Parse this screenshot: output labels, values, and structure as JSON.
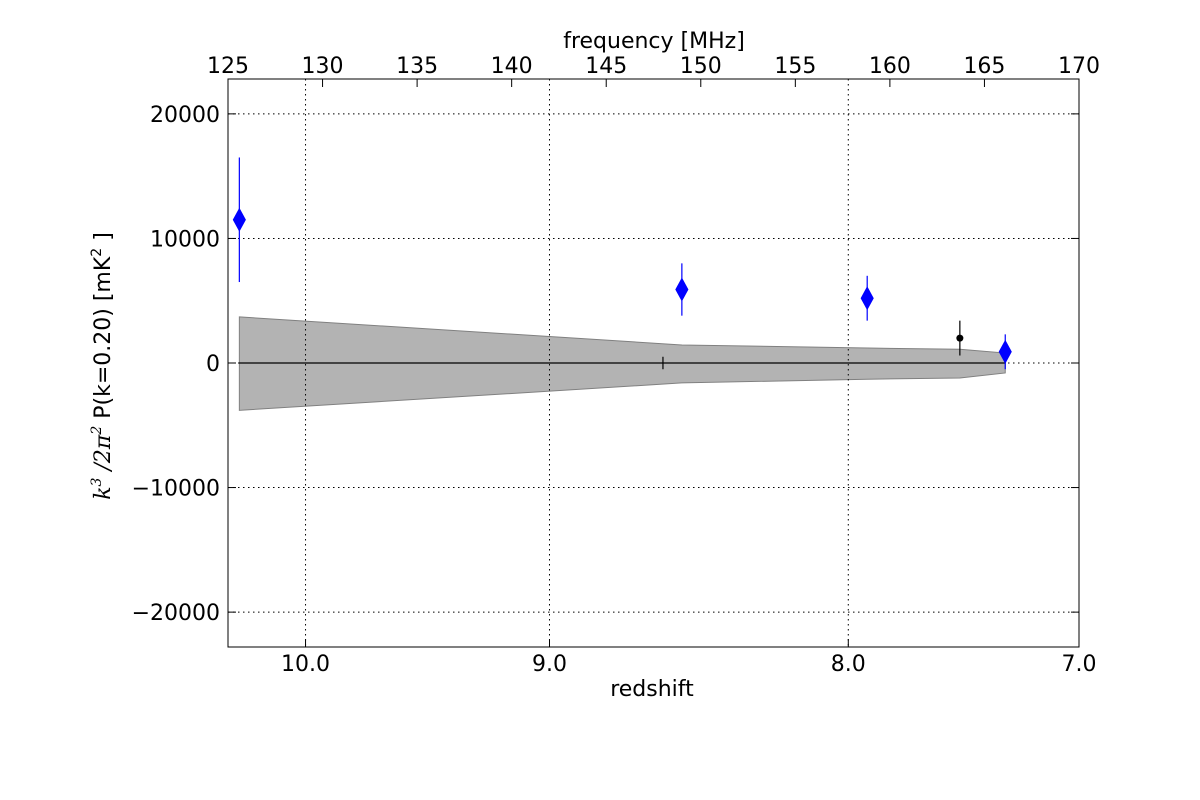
{
  "chart_data": {
    "type": "scatter",
    "title": "",
    "xlabel": "redshift",
    "ylabel": "k³ /2π² P(k=0.20)  [mK² ]",
    "ylabel_parts": [
      "k",
      "3",
      " /2π",
      "2",
      " P(k=0.20)  [mK",
      "2",
      " ]"
    ],
    "x2label": "frequency [MHz]",
    "x2lim": [
      125,
      170
    ],
    "x2ticks": [
      "125",
      "130",
      "135",
      "140",
      "145",
      "150",
      "155",
      "160",
      "165",
      "170"
    ],
    "xticks": [
      {
        "freq": 129.1,
        "label": "10.0"
      },
      {
        "freq": 142.0,
        "label": "9.0"
      },
      {
        "freq": 157.8,
        "label": "8.0"
      },
      {
        "freq": 177.5,
        "label": "7.0"
      }
    ],
    "ylim": [
      -22800,
      22800
    ],
    "yticks": [
      -20000,
      -10000,
      0,
      10000,
      20000
    ],
    "yticklabels": [
      "−20000",
      "−10000",
      "0",
      "10000",
      "20000"
    ],
    "grid": true,
    "series": [
      {
        "color": "#0000ff",
        "marker": "diamond",
        "points": [
          {
            "freq": 125.6,
            "y": 11500,
            "err": 5000
          },
          {
            "freq": 149.0,
            "y": 5900,
            "err": 2100
          },
          {
            "freq": 158.8,
            "y": 5200,
            "err": 1800
          },
          {
            "freq": 166.1,
            "y": 900,
            "err": 1400
          }
        ]
      },
      {
        "color": "#000000",
        "marker": "dot",
        "points": [
          {
            "freq": 148.0,
            "y": 0,
            "err": 500
          },
          {
            "freq": 163.7,
            "y": 2000,
            "err": 1400
          }
        ]
      }
    ],
    "noise_band": {
      "color": "#b3b3b3",
      "freq": [
        125.6,
        149.0,
        158.8,
        163.7,
        166.1
      ],
      "upper": [
        3700,
        1450,
        1200,
        1100,
        800
      ],
      "lower": [
        -3800,
        -1600,
        -1300,
        -1200,
        -800
      ]
    },
    "zero_line": {
      "freq": [
        125.6,
        166.1
      ],
      "y": 0
    }
  }
}
